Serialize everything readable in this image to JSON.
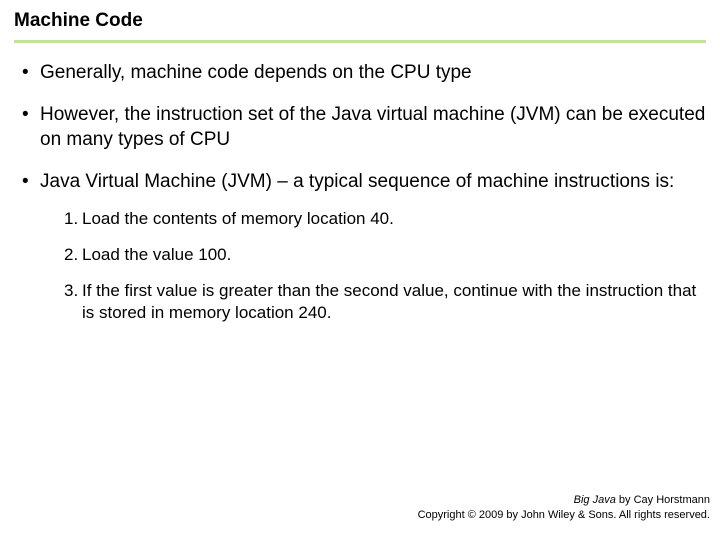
{
  "title": "Machine Code",
  "title_fontsize": "19px",
  "accent_color": "#bfe39f",
  "body_fontsize": "19px",
  "sub_fontsize": "17px",
  "footer_fontsize": "11px",
  "text_color": "#000000",
  "background_color": "#ffffff",
  "bullets": {
    "b0": "Generally, machine code depends on the CPU type",
    "b1": "However, the instruction set of the Java virtual machine (JVM) can be executed on many types of CPU",
    "b2": "Java Virtual Machine (JVM) – a typical sequence of machine instructions is:"
  },
  "steps": {
    "n1": "1.",
    "s1": "Load the contents of memory location 40.",
    "n2": "2.",
    "s2": "Load the value 100.",
    "n3": "3.",
    "s3": "If the first value is greater than the second value, continue with the instruction that is stored in memory location 240."
  },
  "footer": {
    "book": "Big Java",
    "by": " by Cay Horstmann",
    "copyright": "Copyright © 2009 by John Wiley & Sons. All rights reserved."
  }
}
